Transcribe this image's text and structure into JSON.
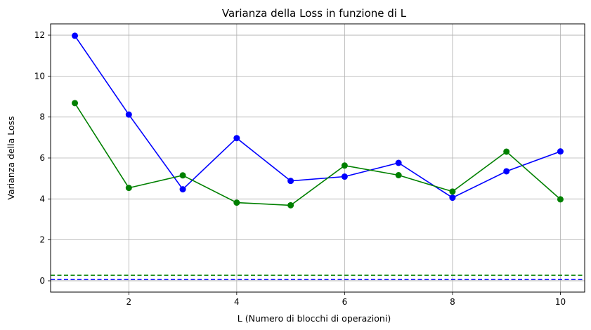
{
  "chart_data": {
    "type": "line",
    "title": "Varianza della Loss in funzione di L",
    "xlabel": "L (Numero di blocchi di operazioni)",
    "ylabel": "Varianza della Loss",
    "xlim": [
      0.55,
      10.45
    ],
    "ylim": [
      -0.55,
      12.55
    ],
    "xticks": [
      2,
      4,
      6,
      8,
      10
    ],
    "yticks": [
      0,
      2,
      4,
      6,
      8,
      10,
      12
    ],
    "grid": true,
    "x": [
      1,
      2,
      3,
      4,
      5,
      6,
      7,
      8,
      9,
      10
    ],
    "series": [
      {
        "color": "#0000ff",
        "values": [
          11.97,
          8.12,
          4.47,
          6.97,
          4.88,
          5.09,
          5.76,
          4.06,
          5.35,
          6.32
        ]
      },
      {
        "color": "#008000",
        "values": [
          8.68,
          4.54,
          5.15,
          3.82,
          3.69,
          5.63,
          5.16,
          4.36,
          6.31,
          3.98
        ]
      }
    ],
    "hlines": [
      {
        "y": 0.27,
        "color": "#008000",
        "style": "dashed"
      },
      {
        "y": 0.07,
        "color": "#0000ff",
        "style": "dashed"
      }
    ]
  }
}
